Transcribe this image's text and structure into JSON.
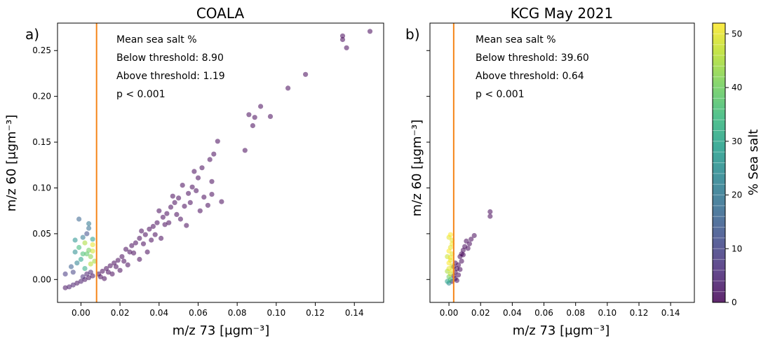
{
  "chart_data": [
    {
      "type": "scatter",
      "title": "COALA",
      "panel_label": "a)",
      "xlabel": "m/z 73 [μgm⁻³]",
      "ylabel": "m/z 60 [μgm⁻³]",
      "xlim": [
        -0.012,
        0.155
      ],
      "ylim": [
        -0.025,
        0.28
      ],
      "xticks": [
        "0.00",
        "0.02",
        "0.04",
        "0.06",
        "0.08",
        "0.10",
        "0.12",
        "0.14"
      ],
      "yticks": [
        "0.00",
        "0.05",
        "0.10",
        "0.15",
        "0.20",
        "0.25"
      ],
      "threshold_x": 0.008,
      "annotations": [
        "Mean sea salt %",
        "Below threshold: 8.90",
        "Above threshold: 1.19",
        "p < 0.001"
      ],
      "points": [
        [
          0.148,
          0.271,
          1
        ],
        [
          0.136,
          0.253,
          1
        ],
        [
          0.134,
          0.266,
          1
        ],
        [
          0.134,
          0.262,
          1
        ],
        [
          0.115,
          0.224,
          1
        ],
        [
          0.106,
          0.209,
          1
        ],
        [
          0.097,
          0.178,
          1
        ],
        [
          0.092,
          0.189,
          1
        ],
        [
          0.089,
          0.177,
          1
        ],
        [
          0.088,
          0.168,
          1
        ],
        [
          0.086,
          0.18,
          1
        ],
        [
          0.084,
          0.141,
          1
        ],
        [
          0.07,
          0.151,
          1
        ],
        [
          0.068,
          0.137,
          1
        ],
        [
          0.066,
          0.131,
          1
        ],
        [
          0.067,
          0.107,
          1
        ],
        [
          0.062,
          0.122,
          1
        ],
        [
          0.06,
          0.111,
          1
        ],
        [
          0.058,
          0.118,
          1
        ],
        [
          0.072,
          0.085,
          1
        ],
        [
          0.067,
          0.093,
          1
        ],
        [
          0.063,
          0.09,
          1
        ],
        [
          0.057,
          0.101,
          1
        ],
        [
          0.055,
          0.094,
          1
        ],
        [
          0.052,
          0.103,
          1
        ],
        [
          0.05,
          0.089,
          1
        ],
        [
          0.048,
          0.084,
          1
        ],
        [
          0.046,
          0.079,
          1
        ],
        [
          0.047,
          0.091,
          1
        ],
        [
          0.044,
          0.072,
          1
        ],
        [
          0.042,
          0.068,
          1
        ],
        [
          0.04,
          0.075,
          1
        ],
        [
          0.039,
          0.062,
          1
        ],
        [
          0.037,
          0.058,
          1
        ],
        [
          0.035,
          0.055,
          1
        ],
        [
          0.033,
          0.049,
          1
        ],
        [
          0.031,
          0.053,
          1
        ],
        [
          0.03,
          0.045,
          1
        ],
        [
          0.028,
          0.04,
          1
        ],
        [
          0.026,
          0.037,
          1
        ],
        [
          0.025,
          0.03,
          1
        ],
        [
          0.023,
          0.033,
          1
        ],
        [
          0.021,
          0.025,
          1
        ],
        [
          0.019,
          0.021,
          1
        ],
        [
          0.017,
          0.018,
          1
        ],
        [
          0.015,
          0.015,
          1
        ],
        [
          0.013,
          0.012,
          1
        ],
        [
          0.011,
          0.009,
          1
        ],
        [
          0.009,
          0.006,
          1
        ],
        [
          0.036,
          0.043,
          1
        ],
        [
          0.043,
          0.06,
          1
        ],
        [
          0.049,
          0.071,
          1
        ],
        [
          0.053,
          0.08,
          1
        ],
        [
          0.056,
          0.084,
          1
        ],
        [
          0.059,
          0.097,
          1
        ],
        [
          0.045,
          0.062,
          1
        ],
        [
          0.038,
          0.049,
          1
        ],
        [
          0.032,
          0.039,
          1
        ],
        [
          0.027,
          0.029,
          1
        ],
        [
          0.022,
          0.02,
          1
        ],
        [
          0.018,
          0.014,
          1
        ],
        [
          0.014,
          0.008,
          1
        ],
        [
          0.01,
          0.003,
          1
        ],
        [
          0.02,
          0.01,
          1
        ],
        [
          0.024,
          0.016,
          1
        ],
        [
          0.016,
          0.006,
          1
        ],
        [
          0.012,
          0.001,
          1
        ],
        [
          0.03,
          0.022,
          1
        ],
        [
          0.034,
          0.03,
          1
        ],
        [
          0.041,
          0.045,
          1
        ],
        [
          0.051,
          0.066,
          1
        ],
        [
          0.061,
          0.075,
          1
        ],
        [
          0.065,
          0.081,
          1
        ],
        [
          0.054,
          0.059,
          1
        ],
        [
          0.006,
          0.004,
          2
        ],
        [
          0.004,
          0.002,
          2
        ],
        [
          0.002,
          0.0,
          2
        ],
        [
          0.0,
          -0.002,
          3
        ],
        [
          -0.002,
          -0.004,
          2
        ],
        [
          -0.004,
          -0.006,
          4
        ],
        [
          -0.006,
          -0.008,
          3
        ],
        [
          -0.008,
          -0.009,
          2
        ],
        [
          0.005,
          0.008,
          5
        ],
        [
          0.003,
          0.006,
          4
        ],
        [
          0.001,
          0.003,
          6
        ],
        [
          -0.003,
          0.03,
          25
        ],
        [
          -0.001,
          0.035,
          35
        ],
        [
          0.002,
          0.04,
          45
        ],
        [
          0.004,
          0.032,
          40
        ],
        [
          0.006,
          0.038,
          50
        ],
        [
          0.0,
          0.022,
          30
        ],
        [
          0.003,
          0.028,
          38
        ],
        [
          0.005,
          0.025,
          42
        ],
        [
          -0.002,
          0.018,
          22
        ],
        [
          -0.005,
          0.014,
          15
        ],
        [
          0.001,
          0.046,
          20
        ],
        [
          0.003,
          0.05,
          12
        ],
        [
          0.006,
          0.044,
          28
        ],
        [
          0.004,
          0.056,
          18
        ],
        [
          -0.001,
          0.066,
          16
        ],
        [
          0.004,
          0.061,
          20
        ],
        [
          0.005,
          0.017,
          46
        ],
        [
          0.002,
          0.012,
          32
        ],
        [
          -0.004,
          0.008,
          10
        ],
        [
          -0.008,
          0.006,
          8
        ],
        [
          0.007,
          0.02,
          44
        ],
        [
          -0.003,
          0.043,
          26
        ],
        [
          0.001,
          0.028,
          36
        ],
        [
          0.006,
          0.031,
          48
        ]
      ]
    },
    {
      "type": "scatter",
      "title": "KCG May 2021",
      "panel_label": "b)",
      "xlabel": "m/z 73 [μgm⁻³]",
      "ylabel": "m/z 60 [μgm⁻³]",
      "xlim": [
        -0.012,
        0.155
      ],
      "ylim": [
        -0.025,
        0.28
      ],
      "xticks": [
        "0.00",
        "0.02",
        "0.04",
        "0.06",
        "0.08",
        "0.10",
        "0.12",
        "0.14"
      ],
      "threshold_x": 0.003,
      "annotations": [
        "Mean sea salt %",
        "Below threshold: 39.60",
        "Above threshold: 0.64",
        "p < 0.001"
      ],
      "points": [
        [
          0.026,
          0.074,
          1
        ],
        [
          0.026,
          0.069,
          1
        ],
        [
          0.016,
          0.048,
          1
        ],
        [
          0.014,
          0.044,
          1
        ],
        [
          0.013,
          0.039,
          1
        ],
        [
          0.011,
          0.042,
          1
        ],
        [
          0.01,
          0.036,
          1
        ],
        [
          0.009,
          0.032,
          1
        ],
        [
          0.008,
          0.028,
          1
        ],
        [
          0.007,
          0.025,
          1
        ],
        [
          0.008,
          0.02,
          1
        ],
        [
          0.006,
          0.016,
          1
        ],
        [
          0.005,
          0.012,
          1
        ],
        [
          0.004,
          0.008,
          1
        ],
        [
          0.006,
          0.005,
          1
        ],
        [
          0.004,
          0.001,
          1
        ],
        [
          0.003,
          0.004,
          1
        ],
        [
          0.005,
          -0.001,
          1
        ],
        [
          0.002,
          -0.002,
          1
        ],
        [
          0.004,
          0.018,
          1
        ],
        [
          0.012,
          0.034,
          1
        ],
        [
          0.009,
          0.027,
          1
        ],
        [
          0.007,
          0.011,
          1
        ],
        [
          0.003,
          0.014,
          2
        ],
        [
          0.002,
          0.043,
          50
        ],
        [
          0.001,
          0.049,
          52
        ],
        [
          0.0,
          0.046,
          50
        ],
        [
          0.002,
          0.039,
          51
        ],
        [
          0.001,
          0.035,
          50
        ],
        [
          0.0,
          0.031,
          52
        ],
        [
          0.002,
          0.028,
          50
        ],
        [
          -0.001,
          0.025,
          48
        ],
        [
          0.001,
          0.021,
          50
        ],
        [
          0.0,
          0.018,
          52
        ],
        [
          0.002,
          0.015,
          49
        ],
        [
          0.0,
          0.012,
          50
        ],
        [
          -0.001,
          0.009,
          45
        ],
        [
          0.001,
          0.006,
          47
        ],
        [
          0.0,
          0.003,
          40
        ],
        [
          0.001,
          0.0,
          35
        ],
        [
          -0.001,
          -0.002,
          30
        ],
        [
          0.0,
          -0.004,
          25
        ],
        [
          0.002,
          0.01,
          50
        ],
        [
          0.001,
          0.024,
          51
        ]
      ]
    }
  ],
  "colorbar": {
    "label": "% Sea salt",
    "range": [
      0,
      52
    ],
    "ticks": [
      "0",
      "10",
      "20",
      "30",
      "40",
      "50"
    ],
    "colors": [
      "#440154",
      "#482878",
      "#3e4989",
      "#31688e",
      "#26828e",
      "#1f9e89",
      "#35b779",
      "#6ece58",
      "#b5de2b",
      "#fde725"
    ]
  },
  "threshold_color": "#f58518"
}
